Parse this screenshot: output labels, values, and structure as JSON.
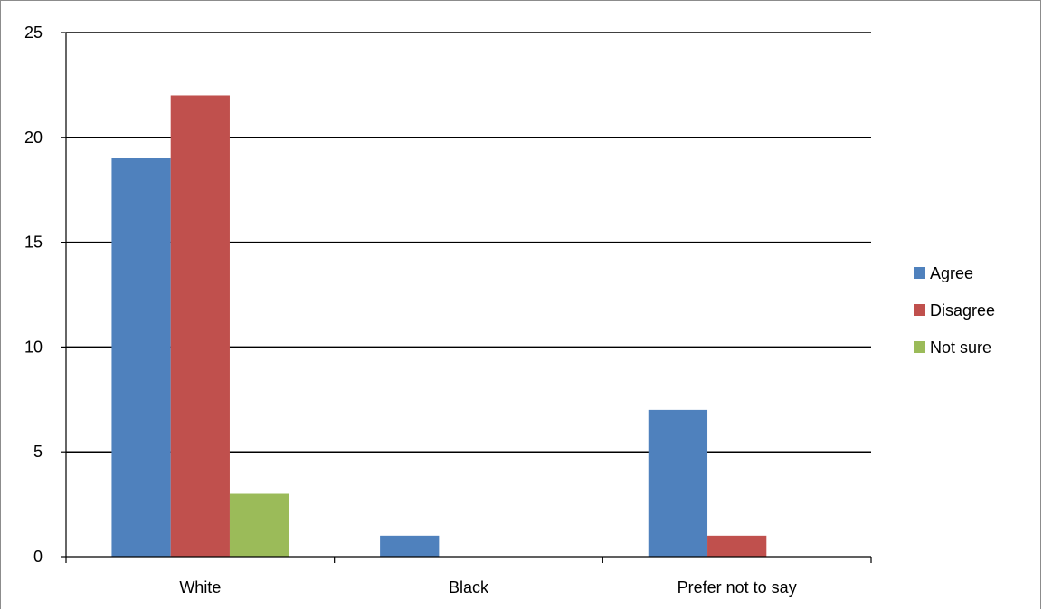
{
  "chart_data": {
    "type": "bar",
    "categories": [
      "White",
      "Black",
      "Prefer not to say"
    ],
    "series": [
      {
        "name": "Agree",
        "values": [
          19,
          1,
          7
        ],
        "color": "#4f81bd"
      },
      {
        "name": "Disagree",
        "values": [
          22,
          0,
          1
        ],
        "color": "#c0504d"
      },
      {
        "name": "Not sure",
        "values": [
          3,
          0,
          0
        ],
        "color": "#9bbb59"
      }
    ],
    "yticks": [
      "0",
      "5",
      "10",
      "15",
      "20",
      "25"
    ],
    "ylim": [
      0,
      25
    ],
    "grid": true,
    "legend_position": "right"
  }
}
